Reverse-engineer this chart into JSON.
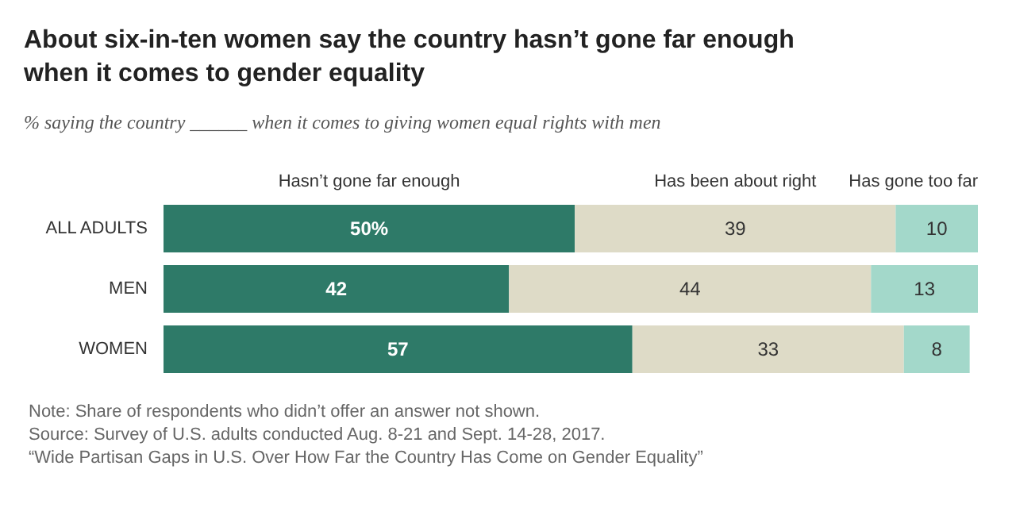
{
  "chart_data": {
    "type": "bar",
    "orientation": "horizontal",
    "stacked": true,
    "title": "About six-in-ten women say the country hasn’t gone far enough when it comes to gender equality",
    "subtitle": "% saying the country ______ when it comes to giving women equal rights with men",
    "categories": [
      "ALL ADULTS",
      "MEN",
      "WOMEN"
    ],
    "tick_labels": "y",
    "legend": "top",
    "series": [
      {
        "name": "Hasn’t gone far enough",
        "color": "#2e7a68",
        "values": [
          50,
          42,
          57
        ],
        "value_labels": [
          "50%",
          "42",
          "57"
        ]
      },
      {
        "name": "Has been about right",
        "color": "#dedbc7",
        "values": [
          39,
          44,
          33
        ],
        "value_labels": [
          "39",
          "44",
          "33"
        ]
      },
      {
        "name": "Has gone too far",
        "color": "#a3d8ca",
        "values": [
          10,
          13,
          8
        ],
        "value_labels": [
          "10",
          "13",
          "8"
        ]
      }
    ],
    "annotations": [
      "Note: Share of respondents who didn’t offer an answer not shown.",
      "Source: Survey of U.S. adults conducted Aug. 8-21 and Sept. 14-28, 2017.",
      "“Wide Partisan Gaps in U.S. Over How Far the Country Has Come on Gender Equality”"
    ]
  }
}
